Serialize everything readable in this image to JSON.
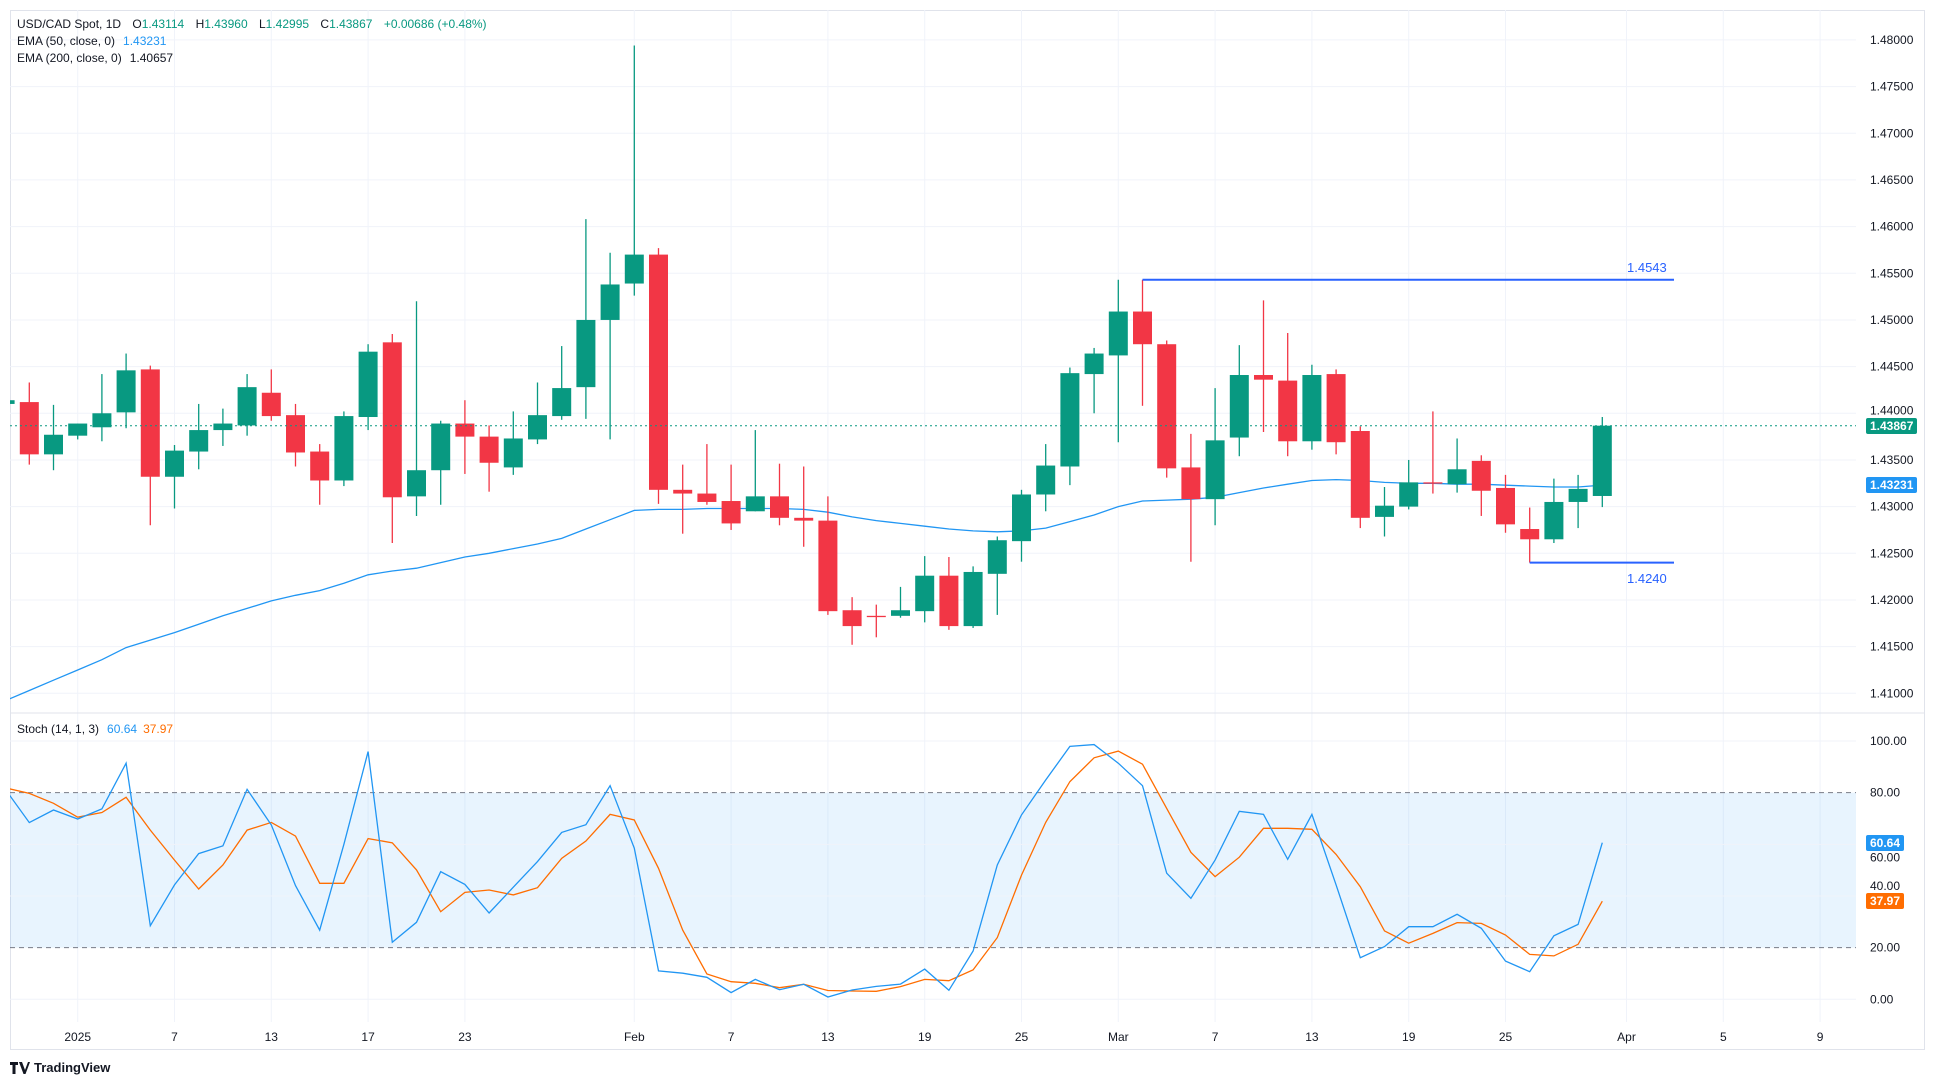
{
  "legend": {
    "symbol": "USD/CAD Spot, 1D",
    "o_label": "O",
    "o": "1.43114",
    "h_label": "H",
    "h": "1.43960",
    "l_label": "L",
    "l": "1.42995",
    "c_label": "C",
    "c": "1.43867",
    "change": "+0.00686 (+0.48%)",
    "ema50_label": "EMA (50, close, 0)",
    "ema50_value": "1.43231",
    "ema200_label": "EMA (200, close, 0)",
    "ema200_value": "1.40657",
    "stoch_label": "Stoch (14, 1, 3)",
    "stoch_k": "60.64",
    "stoch_d": "37.97"
  },
  "tags": {
    "last_price": "1.43867",
    "ema50": "1.43231",
    "stoch_k": "60.64",
    "stoch_d": "37.97"
  },
  "levels": {
    "high": "1.4543",
    "low": "1.4240"
  },
  "colors": {
    "up": "#089981",
    "down": "#f23645",
    "ema": "#2196f3",
    "stoch_k": "#2196f3",
    "stoch_d": "#ff6d00",
    "level": "#2962ff"
  },
  "branding": "TradingView",
  "chart_data": [
    {
      "type": "candlestick",
      "ylim": [
        1.405,
        1.485
      ],
      "yticks": [
        "1.48000",
        "1.47500",
        "1.47000",
        "1.46500",
        "1.46000",
        "1.45500",
        "1.45000",
        "1.44500",
        "1.44000",
        "1.43500",
        "1.43000",
        "1.42500",
        "1.42000",
        "1.41500",
        "1.41000"
      ],
      "xticks": [
        {
          "label": "2025",
          "bar": 3
        },
        {
          "label": "7",
          "bar": 7
        },
        {
          "label": "13",
          "bar": 11
        },
        {
          "label": "17",
          "bar": 15
        },
        {
          "label": "23",
          "bar": 19
        },
        {
          "label": "Feb",
          "bar": 26
        },
        {
          "label": "7",
          "bar": 30
        },
        {
          "label": "13",
          "bar": 34
        },
        {
          "label": "19",
          "bar": 38
        },
        {
          "label": "25",
          "bar": 42
        },
        {
          "label": "Mar",
          "bar": 46
        },
        {
          "label": "7",
          "bar": 50
        },
        {
          "label": "13",
          "bar": 54
        },
        {
          "label": "19",
          "bar": 58
        },
        {
          "label": "25",
          "bar": 62
        },
        {
          "label": "Apr",
          "bar": 67
        },
        {
          "label": "5",
          "bar": 71
        },
        {
          "label": "9",
          "bar": 75
        }
      ],
      "ohlc": [
        [
          1.441,
          1.4414,
          1.441,
          1.4414
        ],
        [
          1.4412,
          1.4433,
          1.4345,
          1.4356
        ],
        [
          1.4356,
          1.4409,
          1.4339,
          1.4377
        ],
        [
          1.4376,
          1.4389,
          1.4372,
          1.4389
        ],
        [
          1.4385,
          1.4442,
          1.437,
          1.44
        ],
        [
          1.4401,
          1.4464,
          1.4384,
          1.4446
        ],
        [
          1.4447,
          1.4451,
          1.428,
          1.4332
        ],
        [
          1.4332,
          1.4366,
          1.4298,
          1.436
        ],
        [
          1.4359,
          1.441,
          1.434,
          1.4382
        ],
        [
          1.4382,
          1.4405,
          1.4365,
          1.4389
        ],
        [
          1.4387,
          1.4442,
          1.4376,
          1.4428
        ],
        [
          1.4422,
          1.4447,
          1.4392,
          1.4397
        ],
        [
          1.4398,
          1.441,
          1.4343,
          1.4358
        ],
        [
          1.4359,
          1.4367,
          1.4302,
          1.4328
        ],
        [
          1.4328,
          1.4402,
          1.4322,
          1.4397
        ],
        [
          1.4396,
          1.4474,
          1.4382,
          1.4466
        ],
        [
          1.4476,
          1.4485,
          1.4261,
          1.431
        ],
        [
          1.4311,
          1.452,
          1.429,
          1.4339
        ],
        [
          1.4339,
          1.4392,
          1.4302,
          1.4389
        ],
        [
          1.4389,
          1.4414,
          1.4335,
          1.4375
        ],
        [
          1.4375,
          1.4387,
          1.4316,
          1.4347
        ],
        [
          1.4342,
          1.4402,
          1.4334,
          1.4373
        ],
        [
          1.4372,
          1.4433,
          1.4367,
          1.4398
        ],
        [
          1.4397,
          1.4472,
          1.4393,
          1.4427
        ],
        [
          1.4428,
          1.4608,
          1.4394,
          1.45
        ],
        [
          1.45,
          1.4572,
          1.4372,
          1.4538
        ],
        [
          1.4539,
          1.4794,
          1.4526,
          1.457
        ],
        [
          1.457,
          1.4577,
          1.4303,
          1.4318
        ],
        [
          1.4318,
          1.4345,
          1.4271,
          1.4314
        ],
        [
          1.4314,
          1.4367,
          1.4302,
          1.4305
        ],
        [
          1.4306,
          1.4345,
          1.4275,
          1.4282
        ],
        [
          1.4295,
          1.4382,
          1.4295,
          1.4311
        ],
        [
          1.4311,
          1.4346,
          1.428,
          1.4288
        ],
        [
          1.4288,
          1.4343,
          1.4257,
          1.4285
        ],
        [
          1.4285,
          1.4311,
          1.4184,
          1.4188
        ],
        [
          1.4189,
          1.4203,
          1.4152,
          1.4172
        ],
        [
          1.4183,
          1.4195,
          1.416,
          1.4182
        ],
        [
          1.4183,
          1.4214,
          1.4181,
          1.4189
        ],
        [
          1.4188,
          1.4247,
          1.4176,
          1.4226
        ],
        [
          1.4226,
          1.4246,
          1.4168,
          1.4172
        ],
        [
          1.4172,
          1.4236,
          1.417,
          1.423
        ],
        [
          1.4228,
          1.4268,
          1.4184,
          1.4264
        ],
        [
          1.4263,
          1.4318,
          1.4241,
          1.4313
        ],
        [
          1.4313,
          1.4367,
          1.4295,
          1.4344
        ],
        [
          1.4343,
          1.4449,
          1.4323,
          1.4443
        ],
        [
          1.4442,
          1.447,
          1.44,
          1.4464
        ],
        [
          1.4462,
          1.4543,
          1.4369,
          1.4509
        ],
        [
          1.4509,
          1.4543,
          1.4408,
          1.4474
        ],
        [
          1.4474,
          1.4478,
          1.4331,
          1.4341
        ],
        [
          1.4342,
          1.4378,
          1.4241,
          1.4308
        ],
        [
          1.4308,
          1.4427,
          1.428,
          1.4371
        ],
        [
          1.4374,
          1.4473,
          1.4354,
          1.4441
        ],
        [
          1.4441,
          1.4521,
          1.438,
          1.4436
        ],
        [
          1.4435,
          1.4486,
          1.4354,
          1.437
        ],
        [
          1.437,
          1.4452,
          1.4361,
          1.4441
        ],
        [
          1.4442,
          1.4447,
          1.4356,
          1.4369
        ],
        [
          1.4381,
          1.4386,
          1.4277,
          1.4288
        ],
        [
          1.4289,
          1.4321,
          1.4268,
          1.4301
        ],
        [
          1.43,
          1.435,
          1.4297,
          1.4326
        ],
        [
          1.4326,
          1.4402,
          1.4314,
          1.4325
        ],
        [
          1.4324,
          1.4373,
          1.4315,
          1.434
        ],
        [
          1.4349,
          1.4355,
          1.429,
          1.4317
        ],
        [
          1.432,
          1.4334,
          1.4272,
          1.4281
        ],
        [
          1.4276,
          1.4299,
          1.424,
          1.4265
        ],
        [
          1.4265,
          1.433,
          1.4261,
          1.4305
        ],
        [
          1.4305,
          1.4334,
          1.4277,
          1.4319
        ],
        [
          1.43114,
          1.4396,
          1.42995,
          1.43867
        ]
      ],
      "ema50": [
        1.4092,
        1.4103,
        1.4114,
        1.4125,
        1.4136,
        1.4149,
        1.4157,
        1.4165,
        1.4174,
        1.4183,
        1.4191,
        1.4199,
        1.4205,
        1.421,
        1.4218,
        1.4227,
        1.4231,
        1.4234,
        1.424,
        1.4246,
        1.425,
        1.4255,
        1.426,
        1.4266,
        1.4276,
        1.4286,
        1.4296,
        1.4297,
        1.4297,
        1.4298,
        1.4298,
        1.4298,
        1.4298,
        1.4297,
        1.4294,
        1.4289,
        1.4285,
        1.4282,
        1.4279,
        1.4276,
        1.4274,
        1.4273,
        1.4274,
        1.4277,
        1.4284,
        1.4291,
        1.43,
        1.4306,
        1.4307,
        1.4308,
        1.431,
        1.4315,
        1.432,
        1.4324,
        1.4328,
        1.4329,
        1.4328,
        1.4326,
        1.4325,
        1.4325,
        1.4324,
        1.4324,
        1.4323,
        1.4322,
        1.4321,
        1.4321,
        1.43231
      ],
      "level_high": {
        "value": 1.4543,
        "from_bar": 47
      },
      "level_low": {
        "value": 1.424,
        "from_bar": 63
      }
    },
    {
      "type": "line",
      "ylim": [
        0,
        100
      ],
      "yticks": [
        "100.00",
        "80.00",
        "60.00",
        "40.00",
        "20.00",
        "0.00"
      ],
      "bands": [
        20,
        80
      ],
      "k": [
        81.4,
        68.4,
        73.3,
        69.8,
        73.7,
        91.4,
        28.5,
        44.3,
        56.4,
        59.4,
        81.3,
        67.5,
        44.0,
        26.8,
        60.0,
        95.9,
        22.1,
        29.8,
        49.4,
        44.5,
        33.4,
        43.4,
        53.3,
        64.6,
        67.6,
        82.7,
        58.5,
        11.0,
        10.1,
        8.5,
        2.6,
        7.7,
        3.7,
        5.8,
        0.9,
        3.6,
        5.0,
        5.9,
        11.7,
        3.5,
        18.7,
        52.0,
        71.4,
        84.9,
        97.9,
        98.6,
        91.4,
        82.7,
        48.8,
        39.1,
        53.9,
        72.8,
        71.6,
        54.2,
        71.6,
        44.3,
        16.1,
        20.4,
        28.1,
        28.1,
        32.9,
        27.5,
        14.8,
        10.7,
        24.6,
        29.0,
        60.64
      ],
      "d": [
        81.9,
        79.7,
        75.9,
        70.5,
        72.3,
        78.2,
        65.5,
        53.9,
        42.7,
        52.0,
        65.5,
        68.5,
        63.2,
        44.9,
        44.9,
        62.2,
        60.6,
        50.1,
        33.9,
        41.4,
        42.3,
        40.4,
        43.2,
        54.6,
        61.3,
        71.6,
        69.4,
        50.7,
        26.8,
        9.8,
        6.8,
        6.2,
        4.5,
        5.8,
        3.4,
        3.2,
        3.1,
        4.9,
        7.7,
        7.2,
        11.4,
        23.9,
        48.1,
        68.5,
        84.3,
        93.5,
        96.1,
        91.0,
        73.9,
        56.9,
        47.5,
        55.0,
        66.2,
        66.2,
        65.8,
        56.1,
        43.6,
        26.5,
        21.7,
        25.5,
        29.7,
        29.4,
        24.9,
        17.4,
        16.8,
        21.3,
        37.97
      ]
    }
  ]
}
